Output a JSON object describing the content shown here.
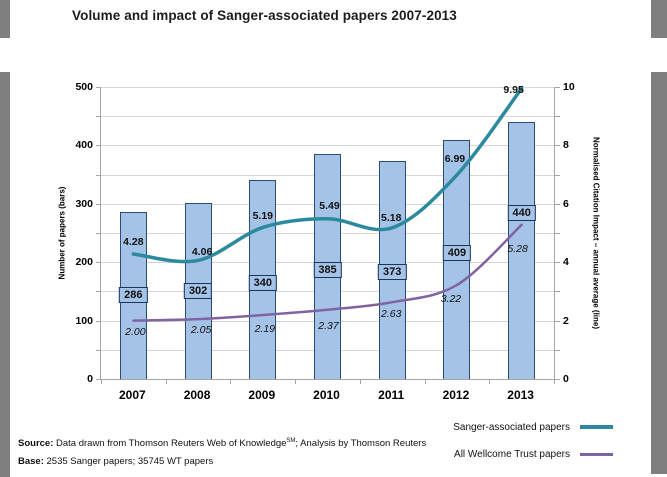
{
  "title": "Volume and impact of Sanger-associated papers 2007-2013",
  "colors": {
    "bar_fill": "#A5C3E7",
    "bar_border": "#2A4D75",
    "sanger_line": "#2B8A9E",
    "wt_line": "#8064A2",
    "gridline": "#D6D6D6",
    "axis": "#A6A6A6",
    "edge_gray": "#7F7F7F"
  },
  "chart_data": {
    "type": "combo bar + smooth line",
    "categories": [
      "2007",
      "2008",
      "2009",
      "2010",
      "2011",
      "2012",
      "2013"
    ],
    "bar_series": {
      "name": "Number of papers",
      "axis": "left",
      "values": [
        286,
        302,
        340,
        385,
        373,
        409,
        440
      ],
      "labels": [
        "286",
        "302",
        "340",
        "385",
        "373",
        "409",
        "440"
      ]
    },
    "line_series": [
      {
        "name": "Sanger-associated papers",
        "axis": "right",
        "color": "#2B8A9E",
        "stroke_width": 3.5,
        "label_style": "bold",
        "values": [
          4.28,
          4.06,
          5.19,
          5.49,
          5.18,
          6.99,
          9.95
        ],
        "labels": [
          "4.28",
          "4.06",
          "5.19",
          "5.49",
          "5.18",
          "6.99",
          "9.95"
        ]
      },
      {
        "name": "All Wellcome Trust papers",
        "axis": "right",
        "color": "#8064A2",
        "stroke_width": 2.5,
        "label_style": "italic",
        "values": [
          2.0,
          2.05,
          2.19,
          2.37,
          2.63,
          3.22,
          5.28
        ],
        "labels": [
          "2.00",
          "2.05",
          "2.19",
          "2.37",
          "2.63",
          "3.22",
          "5.28"
        ]
      }
    ],
    "left_axis": {
      "title": "Number of papers (bars)",
      "range": [
        0,
        500
      ],
      "tick_values": [
        0,
        100,
        200,
        300,
        400,
        500
      ],
      "tick_labels": [
        "0",
        "100",
        "200",
        "300",
        "400",
        "500"
      ],
      "gridline_step": 50
    },
    "right_axis": {
      "title": "Normalised Citation Impact – annual average (line)",
      "range": [
        0,
        10
      ],
      "tick_values": [
        0,
        2,
        4,
        6,
        8,
        10
      ],
      "tick_labels": [
        "0",
        "2",
        "4",
        "6",
        "8",
        "10"
      ]
    },
    "grid": true,
    "legend_position": "bottom-right",
    "layout_hints": {
      "bar_label_y_axis_units": [
        144,
        151,
        164,
        187,
        183,
        216,
        284
      ],
      "line_label_offsets": [
        {
          "dx": [
            0,
            4,
            0,
            2,
            -1,
            -2,
            -8
          ],
          "dy": [
            -12,
            -8,
            -11,
            -13,
            -10,
            -16,
            2
          ]
        },
        {
          "dx": [
            2,
            3,
            2,
            1,
            -1,
            -6,
            -4
          ],
          "dy": [
            11,
            11,
            14,
            16,
            12,
            14,
            24
          ]
        }
      ]
    }
  },
  "legend": {
    "items": [
      {
        "label": "Sanger-associated papers",
        "color": "#2B8A9E",
        "thickness": 4
      },
      {
        "label": "All Wellcome Trust papers",
        "color": "#8064A2",
        "thickness": 3
      }
    ]
  },
  "footer": {
    "source_label": "Source:",
    "source_text_1": " Data drawn from Thomson Reuters Web of Knowledge",
    "source_sup": "SM",
    "source_text_2": "; Analysis by Thomson Reuters",
    "base_label": "Base:",
    "base_text": " 2535 Sanger papers; 35745 WT papers"
  }
}
